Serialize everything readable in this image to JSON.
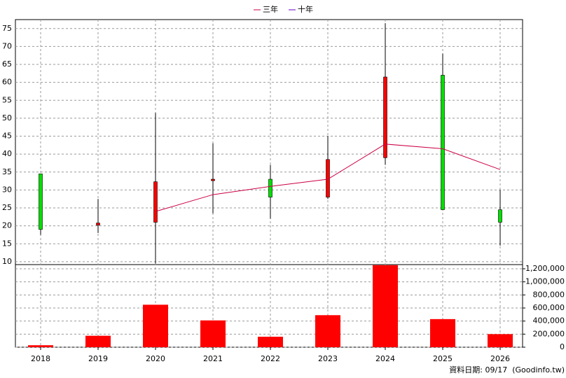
{
  "chart_data": {
    "type": "candlestick",
    "categories": [
      "2018",
      "2019",
      "2020",
      "2021",
      "2022",
      "2023",
      "2024",
      "2025",
      "2026"
    ],
    "open": [
      34.5,
      20.2,
      21,
      32.6,
      33,
      28,
      39,
      62,
      24.5
    ],
    "high": [
      34.5,
      27.5,
      51.5,
      43,
      37,
      45,
      76.5,
      68,
      30
    ],
    "low": [
      17.5,
      18,
      9.5,
      23.5,
      22,
      27.5,
      37,
      24.5,
      14.5
    ],
    "close": [
      19,
      20.8,
      32.3,
      33,
      28,
      38.5,
      61.5,
      24.5,
      21
    ],
    "up_color": "#ff0000",
    "down_color": "#00e000",
    "series": [
      {
        "name": "三年",
        "color": "#cc0044",
        "values": [
          null,
          null,
          24,
          28.7,
          31,
          33,
          42.8,
          41.5,
          35.7
        ]
      },
      {
        "name": "十年",
        "color": "#6600cc",
        "values": [
          null,
          null,
          null,
          null,
          null,
          null,
          null,
          null,
          null
        ]
      }
    ],
    "ylim": [
      9.2,
      77.5
    ],
    "yticks": [
      10,
      15,
      20,
      25,
      30,
      35,
      40,
      45,
      50,
      55,
      60,
      65,
      70,
      75
    ],
    "grid": true,
    "volume": {
      "type": "bar",
      "color": "#ff0000",
      "values": [
        30000,
        175000,
        650000,
        410000,
        160000,
        490000,
        1255000,
        430000,
        200000
      ],
      "ylim": [
        0,
        1264000
      ],
      "yticks": [
        0,
        {
          "value": 200000,
          "label": "200,000"
        },
        {
          "value": 400000,
          "label": "400,000"
        },
        {
          "value": 600000,
          "label": "600,000"
        },
        {
          "value": 800000,
          "label": "800,000"
        },
        {
          "value": 1000000,
          "label": "1,000,000"
        },
        {
          "value": 1200000,
          "label": "1,200,000"
        }
      ]
    },
    "footer": "資料日期: 09/17  (Goodinfo.tw)"
  }
}
